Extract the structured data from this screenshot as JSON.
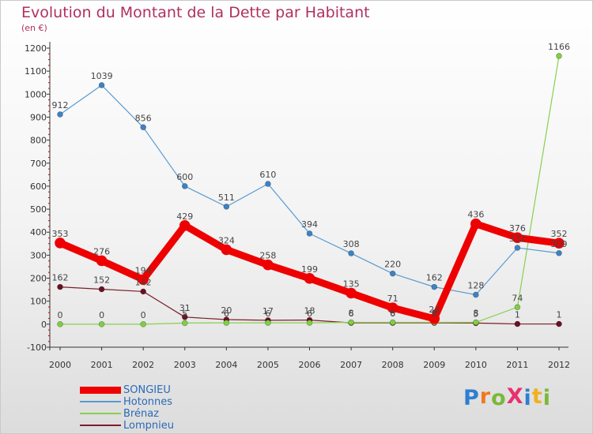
{
  "title": "Evolution du Montant de la Dette par Habitant",
  "subtitle": "(en €)",
  "logo_text": "ProXiti",
  "chart_data": {
    "type": "line",
    "x": [
      "2000",
      "2001",
      "2002",
      "2003",
      "2004",
      "2005",
      "2006",
      "2007",
      "2008",
      "2009",
      "2010",
      "2011",
      "2012"
    ],
    "ylim": [
      -100,
      1200
    ],
    "yticks": [
      "-100",
      "0",
      "100",
      "200",
      "300",
      "400",
      "500",
      "600",
      "700",
      "800",
      "900",
      "1000",
      "1100",
      "1200"
    ],
    "grid": false,
    "legend_position": "bottom-left",
    "series": [
      {
        "name": "SONGIEU",
        "color": "#ee0000",
        "values": [
          353,
          276,
          194,
          429,
          324,
          258,
          199,
          135,
          71,
          24,
          436,
          376,
          352
        ],
        "labels": [
          "353",
          "276",
          "194",
          "429",
          "324",
          "258",
          "199",
          "135",
          "71",
          "24",
          "436",
          "376",
          "352"
        ]
      },
      {
        "name": "Hotonnes",
        "color": "#5a9ad0",
        "values": [
          912,
          1039,
          856,
          600,
          511,
          610,
          394,
          308,
          220,
          162,
          128,
          332,
          309
        ],
        "labels": [
          "912",
          "1039",
          "856",
          "600",
          "511",
          "610",
          "394",
          "308",
          "220",
          "162",
          "128",
          "332",
          "309"
        ]
      },
      {
        "name": "Brénaz",
        "color": "#88d050",
        "values": [
          0,
          0,
          0,
          5,
          6,
          6,
          6,
          8,
          8,
          8,
          8,
          74,
          1166
        ],
        "labels": [
          "0",
          "0",
          "0",
          "5",
          "6",
          "6",
          "6",
          "8",
          "8",
          "8",
          "8",
          "74",
          "1166"
        ]
      },
      {
        "name": "Lompnieu",
        "color": "#7a1f2a",
        "values": [
          162,
          152,
          142,
          31,
          20,
          17,
          18,
          6,
          6,
          6,
          5,
          1,
          1
        ],
        "labels": [
          "162",
          "152",
          "142",
          "31",
          "20",
          "17",
          "18",
          "6",
          "6",
          "6",
          "5",
          "1",
          "1"
        ]
      }
    ]
  }
}
